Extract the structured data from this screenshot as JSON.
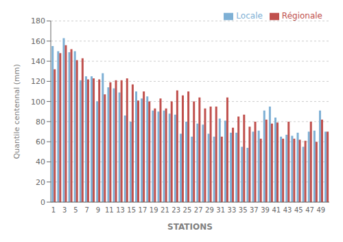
{
  "chart_data": {
    "type": "bar",
    "xlabel": "STATIONS",
    "ylabel": "Quantile centennal (mm)",
    "categories": [
      "1",
      null,
      "3",
      null,
      "5",
      null,
      "7",
      null,
      "9",
      null,
      "11",
      null,
      "13",
      null,
      "15",
      null,
      "17",
      null,
      "19",
      null,
      "21",
      null,
      "23",
      null,
      "25",
      null,
      "27",
      null,
      "29",
      null,
      "31",
      null,
      "33",
      null,
      "35",
      null,
      "37",
      null,
      "39",
      null,
      "41",
      null,
      "43",
      null,
      "45",
      null,
      "47",
      null,
      "49",
      null
    ],
    "series": [
      {
        "name": "Locale",
        "color": "#7EB0D5",
        "values": [
          155,
          150,
          163,
          149,
          150,
          121,
          125,
          125,
          100,
          128,
          114,
          113,
          109,
          86,
          80,
          110,
          103,
          105,
          91,
          90,
          91,
          88,
          87,
          68,
          80,
          65,
          78,
          77,
          68,
          65,
          83,
          81,
          69,
          69,
          55,
          54,
          70,
          71,
          91,
          95,
          84,
          65,
          67,
          66,
          69,
          55,
          70,
          71,
          91,
          70
        ]
      },
      {
        "name": "Régionale",
        "color": "#C0504D",
        "values": [
          132,
          148,
          156,
          152,
          141,
          143,
          122,
          123,
          122,
          107,
          119,
          121,
          121,
          123,
          117,
          101,
          110,
          100,
          93,
          103,
          93,
          100,
          111,
          106,
          110,
          100,
          104,
          93,
          95,
          95,
          65,
          104,
          74,
          85,
          87,
          75,
          80,
          63,
          82,
          78,
          79,
          63,
          80,
          63,
          62,
          61,
          80,
          60,
          82,
          70
        ]
      }
    ],
    "ylim": [
      0,
      180
    ],
    "yticks": [
      0,
      20,
      40,
      60,
      80,
      100,
      120,
      140,
      160,
      180
    ],
    "grid": true,
    "legend": "upper right"
  }
}
